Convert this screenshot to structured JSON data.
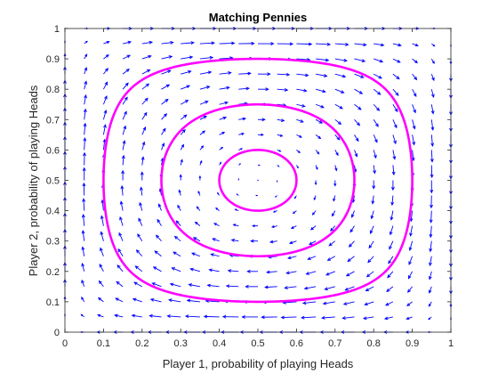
{
  "chart_data": {
    "type": "quiver",
    "title": "Matching Pennies",
    "xlabel": "Player 1, probability of playing Heads",
    "ylabel": "Player 2, probability of playing Heads",
    "xlim": [
      0,
      1
    ],
    "ylim": [
      0,
      1
    ],
    "xticks": [
      "0",
      "0.1",
      "0.2",
      "0.3",
      "0.4",
      "0.5",
      "0.6",
      "0.7",
      "0.8",
      "0.9",
      "1"
    ],
    "yticks": [
      "0",
      "0.1",
      "0.2",
      "0.3",
      "0.4",
      "0.5",
      "0.6",
      "0.7",
      "0.8",
      "0.9",
      "1"
    ],
    "grid": false,
    "vector_field": {
      "color": "#0000ff",
      "x_samples": [
        0,
        0.05,
        0.1,
        0.15,
        0.2,
        0.25,
        0.3,
        0.35,
        0.4,
        0.45,
        0.5,
        0.55,
        0.6,
        0.65,
        0.7,
        0.75,
        0.8,
        0.85,
        0.9,
        0.95,
        1
      ],
      "y_samples": [
        0,
        0.05,
        0.1,
        0.15,
        0.2,
        0.25,
        0.3,
        0.35,
        0.4,
        0.45,
        0.5,
        0.55,
        0.6,
        0.65,
        0.7,
        0.75,
        0.8,
        0.85,
        0.9,
        0.95,
        1
      ],
      "dx": "x*(1-x)*(2*y-1)",
      "dy": "-y*(1-y)*(2*x-1)"
    },
    "orbits": {
      "color": "#ff00ff",
      "center": [
        0.5,
        0.5
      ],
      "series": [
        {
          "x_extent": [
            0.1,
            0.9
          ],
          "y_extent": [
            0.1,
            0.9
          ]
        },
        {
          "x_extent": [
            0.25,
            0.75
          ],
          "y_extent": [
            0.25,
            0.75
          ]
        },
        {
          "x_extent": [
            0.4,
            0.6
          ],
          "y_extent": [
            0.4,
            0.6
          ]
        }
      ]
    }
  }
}
